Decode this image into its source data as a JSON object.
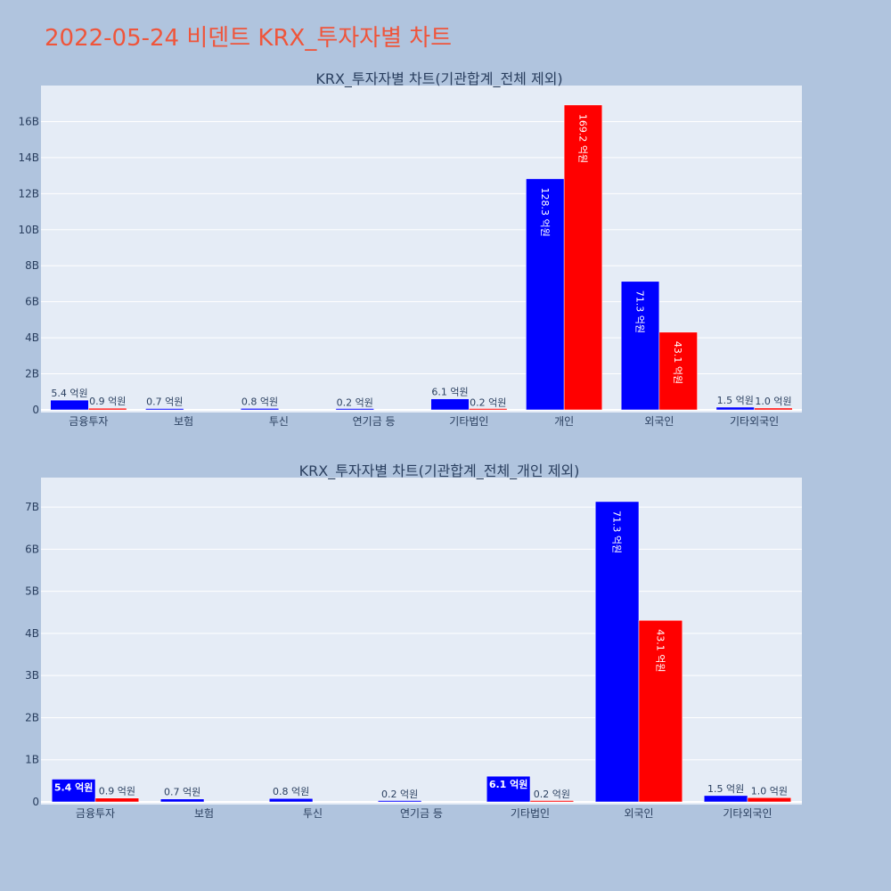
{
  "page": {
    "title": "2022-05-24 비덴트 KRX_투자자별 차트"
  },
  "colors": {
    "background": "#b0c4de",
    "plot_bg": "#e5ecf6",
    "buy": "#0000ff",
    "sell": "#ff0000",
    "title": "#ef553b",
    "text": "#2a3f5f"
  },
  "chart_data": [
    {
      "type": "bar",
      "title": "KRX_투자자별 차트(기관합계_전체 제외)",
      "categories": [
        "금융투자",
        "보험",
        "투신",
        "연기금 등",
        "기타법인",
        "개인",
        "외국인",
        "기타외국인"
      ],
      "series": [
        {
          "color": "#0000ff",
          "values": [
            0.54,
            0.07,
            0.08,
            0.02,
            0.61,
            12.83,
            7.13,
            0.15
          ],
          "labels": [
            "5.4 억원",
            "0.7 억원",
            "0.8 억원",
            "0.2 억원",
            "6.1 억원",
            "128.3 억원",
            "71.3 억원",
            "1.5 억원"
          ]
        },
        {
          "color": "#ff0000",
          "values": [
            0.09,
            0,
            0,
            0,
            0.02,
            16.92,
            4.31,
            0.1
          ],
          "labels": [
            "0.9 억원",
            "",
            "",
            "",
            "0.2 억원",
            "169.2 억원",
            "43.1 억원",
            "1.0 억원"
          ]
        }
      ],
      "ylim": [
        0,
        18
      ],
      "yticks": [
        0,
        2,
        4,
        6,
        8,
        10,
        12,
        14,
        16
      ],
      "ytick_labels": [
        "0",
        "2B",
        "4B",
        "6B",
        "8B",
        "10B",
        "12B",
        "14B",
        "16B"
      ],
      "grid": true
    },
    {
      "type": "bar",
      "title": "KRX_투자자별 차트(기관합계_전체_개인 제외)",
      "categories": [
        "금융투자",
        "보험",
        "투신",
        "연기금 등",
        "기타법인",
        "외국인",
        "기타외국인"
      ],
      "series": [
        {
          "color": "#0000ff",
          "values": [
            0.54,
            0.07,
            0.08,
            0.02,
            0.61,
            7.13,
            0.15
          ],
          "labels": [
            "5.4 억원",
            "0.7 억원",
            "0.8 억원",
            "0.2 억원",
            "6.1 억원",
            "71.3 억원",
            "1.5 억원"
          ]
        },
        {
          "color": "#ff0000",
          "values": [
            0.09,
            0,
            0,
            0,
            0.02,
            4.31,
            0.1
          ],
          "labels": [
            "0.9 억원",
            "",
            "",
            "",
            "0.2 억원",
            "43.1 억원",
            "1.0 억원"
          ]
        }
      ],
      "ylim": [
        0,
        7.7
      ],
      "yticks": [
        0,
        1,
        2,
        3,
        4,
        5,
        6,
        7
      ],
      "ytick_labels": [
        "0",
        "1B",
        "2B",
        "3B",
        "4B",
        "5B",
        "6B",
        "7B"
      ],
      "grid": true
    }
  ]
}
